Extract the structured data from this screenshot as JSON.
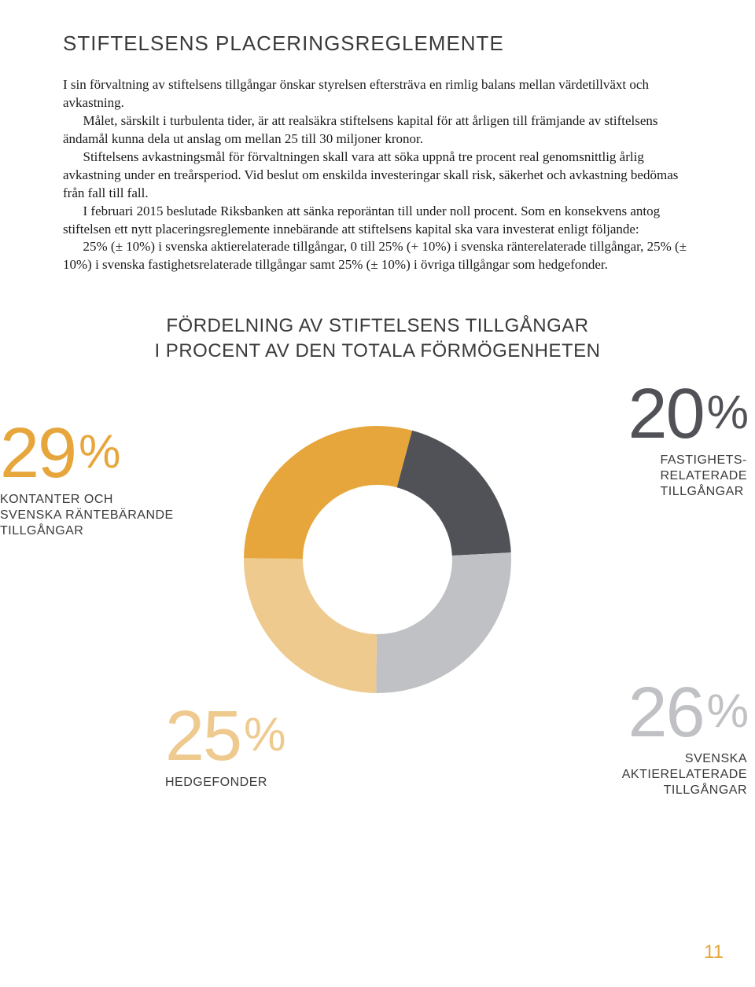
{
  "title": "STIFTELSENS PLACERINGSREGLEMENTE",
  "paragraphs": {
    "p1": "I sin förvaltning av stiftelsens tillgångar önskar styrelsen eftersträva en rimlig balans mellan värdetillväxt och avkastning.",
    "p2": "Målet, särskilt i turbulenta tider, är att realsäkra stiftelsens kapital för att årligen till främjande av stiftelsens ändamål kunna dela ut anslag om mellan 25 till 30 miljoner kronor.",
    "p3": "Stiftelsens avkastningsmål för förvaltningen skall vara att söka uppnå tre procent real genomsnittlig årlig avkastning under en treårsperiod. Vid beslut om enskilda investeringar skall risk, säkerhet och avkastning bedömas från fall till fall.",
    "p4": "I februari 2015 beslutade Riksbanken att sänka reporäntan till under noll procent. Som en konsekvens antog stiftelsen ett nytt placeringsreglemente innebärande att stiftelsens kapital ska vara investerat enligt följande:",
    "p5": "25% (± 10%) i svenska aktierelaterade tillgångar, 0 till 25% (+ 10%) i svenska ränterelaterade tillgångar, 25% (± 10%) i svenska fastighetsrelaterade tillgångar samt 25% (± 10%) i övriga tillgångar som hedgefonder."
  },
  "subtitle_line1": "FÖRDELNING AV STIFTELSENS TILLGÅNGAR",
  "subtitle_line2": "I PROCENT AV DEN TOTALA FÖRMÖGENHETEN",
  "chart": {
    "type": "donut",
    "slices": [
      {
        "key": "fastighet",
        "value": 20,
        "color": "#515257",
        "label": "FASTIGHETS-\nRELATERADE\nTILLGÅNGAR"
      },
      {
        "key": "aktier",
        "value": 26,
        "color": "#c0c1c4",
        "label": "SVENSKA\nAKTIERELATERADE\nTILLGÅNGAR"
      },
      {
        "key": "hedge",
        "value": 25,
        "color": "#eeca8f",
        "label": "HEDGEFONDER"
      },
      {
        "key": "kontanter",
        "value": 29,
        "color": "#e6a63c",
        "label": "KONTANTER OCH\nSVENSKA RÄNTEBÄRANDE\nTILLGÅNGAR"
      }
    ],
    "start_angle_deg": -75,
    "outer_radius": 170,
    "inner_radius": 95,
    "background_color": "#ffffff"
  },
  "stats": {
    "s29": {
      "value": "29",
      "sign": "%",
      "label": "KONTANTER OCH\nSVENSKA RÄNTEBÄRANDE\nTILLGÅNGAR",
      "color": "#e6a63c"
    },
    "s20": {
      "value": "20",
      "sign": "%",
      "label": "FASTIGHETS-\nRELATERADE\nTILLGÅNGAR",
      "color": "#515257"
    },
    "s25": {
      "value": "25",
      "sign": "%",
      "label": "HEDGEFONDER",
      "color": "#eeca8f"
    },
    "s26": {
      "value": "26",
      "sign": "%",
      "label": "SVENSKA\nAKTIERELATERADE\nTILLGÅNGAR",
      "color": "#c0c1c4"
    }
  },
  "page_number": "11"
}
